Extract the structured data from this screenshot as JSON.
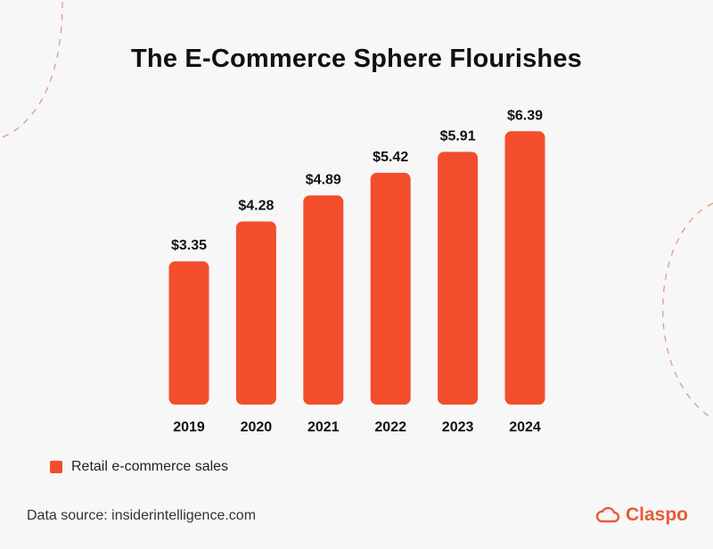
{
  "title": "The E-Commerce Sphere Flourishes",
  "legend": {
    "label": "Retail e-commerce sales"
  },
  "source": "Data source: insiderintelligence.com",
  "brand": {
    "name": "Claspo",
    "icon": "cloud-logo-icon"
  },
  "colors": {
    "bar": "#f24e2e",
    "accent": "#e85a3a",
    "text": "#111111",
    "background": "#f7f7f7"
  },
  "chart_data": {
    "type": "bar",
    "title": "The E-Commerce Sphere Flourishes",
    "categories": [
      "2019",
      "2020",
      "2021",
      "2022",
      "2023",
      "2024"
    ],
    "series": [
      {
        "name": "Retail e-commerce sales",
        "values": [
          3.35,
          4.28,
          4.89,
          5.42,
          5.91,
          6.39
        ]
      }
    ],
    "data_labels": [
      "$3.35",
      "$4.28",
      "$4.89",
      "$5.42",
      "$5.91",
      "$6.39"
    ],
    "xlabel": "",
    "ylabel": "",
    "grid": false,
    "legend_position": "bottom-left"
  }
}
